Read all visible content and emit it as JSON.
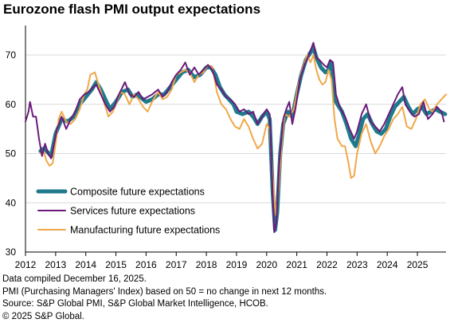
{
  "chart_data": {
    "type": "line",
    "title": "Eurozone flash PMI output expectations",
    "ylim": [
      30,
      76
    ],
    "y_ticks": [
      30,
      40,
      50,
      60,
      70
    ],
    "xlim": [
      2012.0,
      2025.95
    ],
    "x_tick_labels": [
      "2012",
      "2013",
      "2014",
      "2015",
      "2016",
      "2017",
      "2018",
      "2019",
      "2020",
      "2021",
      "2022",
      "2023",
      "2024",
      "2025"
    ],
    "grid": true,
    "legend_position": "bottom-left",
    "series": [
      {
        "name": "Composite future expectations",
        "color": "#1f7a8c",
        "points": [
          [
            2012.5,
            50.5
          ],
          [
            2012.6,
            51
          ],
          [
            2012.7,
            50.5
          ],
          [
            2012.85,
            49.5
          ],
          [
            2013.0,
            54
          ],
          [
            2013.2,
            57
          ],
          [
            2013.4,
            56.5
          ],
          [
            2013.6,
            57.5
          ],
          [
            2013.8,
            60
          ],
          [
            2014.0,
            61.5
          ],
          [
            2014.2,
            63
          ],
          [
            2014.35,
            64.5
          ],
          [
            2014.5,
            63
          ],
          [
            2014.65,
            61
          ],
          [
            2014.8,
            59
          ],
          [
            2015.0,
            60.5
          ],
          [
            2015.2,
            62.5
          ],
          [
            2015.4,
            63
          ],
          [
            2015.55,
            61.5
          ],
          [
            2015.7,
            62
          ],
          [
            2015.9,
            61
          ],
          [
            2016.0,
            60.5
          ],
          [
            2016.2,
            61
          ],
          [
            2016.4,
            62
          ],
          [
            2016.6,
            62
          ],
          [
            2016.8,
            63.5
          ],
          [
            2017.0,
            65
          ],
          [
            2017.2,
            66.5
          ],
          [
            2017.4,
            67
          ],
          [
            2017.6,
            65.5
          ],
          [
            2017.8,
            66
          ],
          [
            2018.0,
            67.5
          ],
          [
            2018.15,
            67.5
          ],
          [
            2018.3,
            66
          ],
          [
            2018.45,
            63.5
          ],
          [
            2018.6,
            62
          ],
          [
            2018.75,
            61
          ],
          [
            2018.9,
            60
          ],
          [
            2019.0,
            58.5
          ],
          [
            2019.2,
            58
          ],
          [
            2019.4,
            58.5
          ],
          [
            2019.55,
            57.5
          ],
          [
            2019.7,
            56
          ],
          [
            2019.85,
            57.5
          ],
          [
            2020.0,
            58.5
          ],
          [
            2020.1,
            57
          ],
          [
            2020.2,
            42
          ],
          [
            2020.28,
            34.5
          ],
          [
            2020.35,
            38
          ],
          [
            2020.45,
            50
          ],
          [
            2020.55,
            56
          ],
          [
            2020.7,
            58.5
          ],
          [
            2020.85,
            57.5
          ],
          [
            2021.0,
            62
          ],
          [
            2021.15,
            66
          ],
          [
            2021.3,
            69
          ],
          [
            2021.45,
            70.5
          ],
          [
            2021.55,
            71.5
          ],
          [
            2021.65,
            69.5
          ],
          [
            2021.8,
            67.5
          ],
          [
            2021.95,
            66.5
          ],
          [
            2022.05,
            67
          ],
          [
            2022.15,
            68.5
          ],
          [
            2022.25,
            61
          ],
          [
            2022.35,
            60
          ],
          [
            2022.5,
            58.5
          ],
          [
            2022.65,
            56
          ],
          [
            2022.8,
            53
          ],
          [
            2022.95,
            51.5
          ],
          [
            2023.05,
            53.5
          ],
          [
            2023.2,
            57
          ],
          [
            2023.35,
            58
          ],
          [
            2023.5,
            56
          ],
          [
            2023.65,
            54.5
          ],
          [
            2023.8,
            54
          ],
          [
            2023.95,
            55
          ],
          [
            2024.1,
            57.5
          ],
          [
            2024.25,
            59.5
          ],
          [
            2024.4,
            60.5
          ],
          [
            2024.55,
            61.5
          ],
          [
            2024.7,
            59.5
          ],
          [
            2024.85,
            58
          ],
          [
            2025.0,
            59
          ],
          [
            2025.15,
            59.5
          ],
          [
            2025.3,
            58
          ],
          [
            2025.45,
            58.5
          ],
          [
            2025.6,
            59
          ],
          [
            2025.75,
            58.5
          ],
          [
            2025.92,
            58
          ]
        ]
      },
      {
        "name": "Services future expectations",
        "color": "#6a1b7a",
        "points": [
          [
            2012.0,
            56.5
          ],
          [
            2012.1,
            58.5
          ],
          [
            2012.15,
            60.5
          ],
          [
            2012.25,
            57.5
          ],
          [
            2012.35,
            57.5
          ],
          [
            2012.45,
            53
          ],
          [
            2012.55,
            49.5
          ],
          [
            2012.65,
            52
          ],
          [
            2012.75,
            50
          ],
          [
            2012.85,
            49
          ],
          [
            2012.95,
            52
          ],
          [
            2013.05,
            55
          ],
          [
            2013.2,
            57.5
          ],
          [
            2013.35,
            55
          ],
          [
            2013.5,
            57
          ],
          [
            2013.65,
            58.5
          ],
          [
            2013.8,
            61
          ],
          [
            2013.95,
            62
          ],
          [
            2014.1,
            62.5
          ],
          [
            2014.25,
            63.5
          ],
          [
            2014.35,
            64
          ],
          [
            2014.5,
            62
          ],
          [
            2014.65,
            60
          ],
          [
            2014.8,
            58.5
          ],
          [
            2014.95,
            59.5
          ],
          [
            2015.1,
            62
          ],
          [
            2015.3,
            64.5
          ],
          [
            2015.45,
            62
          ],
          [
            2015.6,
            61.5
          ],
          [
            2015.75,
            62.5
          ],
          [
            2015.9,
            61
          ],
          [
            2016.05,
            61.5
          ],
          [
            2016.2,
            62
          ],
          [
            2016.4,
            63
          ],
          [
            2016.55,
            61.5
          ],
          [
            2016.7,
            62.5
          ],
          [
            2016.85,
            64.5
          ],
          [
            2017.0,
            66
          ],
          [
            2017.15,
            67
          ],
          [
            2017.3,
            68.5
          ],
          [
            2017.45,
            66
          ],
          [
            2017.6,
            67.5
          ],
          [
            2017.75,
            66
          ],
          [
            2017.9,
            67
          ],
          [
            2018.05,
            68
          ],
          [
            2018.2,
            67
          ],
          [
            2018.35,
            64
          ],
          [
            2018.5,
            63
          ],
          [
            2018.65,
            61.5
          ],
          [
            2018.8,
            61
          ],
          [
            2018.95,
            60
          ],
          [
            2019.1,
            58.5
          ],
          [
            2019.25,
            59
          ],
          [
            2019.4,
            58
          ],
          [
            2019.55,
            58.5
          ],
          [
            2019.7,
            56
          ],
          [
            2019.85,
            57.5
          ],
          [
            2020.0,
            59
          ],
          [
            2020.1,
            58
          ],
          [
            2020.18,
            45
          ],
          [
            2020.25,
            34
          ],
          [
            2020.32,
            36
          ],
          [
            2020.42,
            48
          ],
          [
            2020.55,
            57
          ],
          [
            2020.65,
            59
          ],
          [
            2020.75,
            60.5
          ],
          [
            2020.85,
            56
          ],
          [
            2020.95,
            59
          ],
          [
            2021.1,
            65
          ],
          [
            2021.25,
            68
          ],
          [
            2021.4,
            70
          ],
          [
            2021.55,
            72.5
          ],
          [
            2021.65,
            69.5
          ],
          [
            2021.75,
            69
          ],
          [
            2021.9,
            68
          ],
          [
            2022.0,
            67.5
          ],
          [
            2022.1,
            69
          ],
          [
            2022.2,
            68.5
          ],
          [
            2022.3,
            62
          ],
          [
            2022.4,
            60
          ],
          [
            2022.5,
            58.5
          ],
          [
            2022.6,
            57.5
          ],
          [
            2022.75,
            55
          ],
          [
            2022.9,
            53
          ],
          [
            2023.0,
            54.5
          ],
          [
            2023.15,
            58
          ],
          [
            2023.3,
            60
          ],
          [
            2023.45,
            56.5
          ],
          [
            2023.6,
            55.5
          ],
          [
            2023.75,
            54.5
          ],
          [
            2023.9,
            56
          ],
          [
            2024.05,
            58
          ],
          [
            2024.2,
            60
          ],
          [
            2024.35,
            62
          ],
          [
            2024.5,
            63.5
          ],
          [
            2024.6,
            60
          ],
          [
            2024.75,
            58.5
          ],
          [
            2024.9,
            57.5
          ],
          [
            2025.05,
            58
          ],
          [
            2025.2,
            60.5
          ],
          [
            2025.35,
            57
          ],
          [
            2025.5,
            58
          ],
          [
            2025.65,
            59.5
          ],
          [
            2025.8,
            58.5
          ],
          [
            2025.88,
            56.5
          ]
        ]
      },
      {
        "name": "Manufacturing future expectations",
        "color": "#f0a848",
        "points": [
          [
            2012.5,
            50
          ],
          [
            2012.6,
            50.5
          ],
          [
            2012.7,
            48.5
          ],
          [
            2012.8,
            47.5
          ],
          [
            2012.9,
            48
          ],
          [
            2013.0,
            52
          ],
          [
            2013.1,
            57
          ],
          [
            2013.2,
            58.5
          ],
          [
            2013.35,
            56.5
          ],
          [
            2013.5,
            56
          ],
          [
            2013.65,
            57
          ],
          [
            2013.8,
            59
          ],
          [
            2013.95,
            62
          ],
          [
            2014.05,
            63
          ],
          [
            2014.15,
            66
          ],
          [
            2014.3,
            66.5
          ],
          [
            2014.45,
            63.5
          ],
          [
            2014.6,
            60.5
          ],
          [
            2014.75,
            57.5
          ],
          [
            2014.9,
            58.5
          ],
          [
            2015.0,
            60
          ],
          [
            2015.15,
            62.5
          ],
          [
            2015.3,
            62
          ],
          [
            2015.45,
            60
          ],
          [
            2015.6,
            62
          ],
          [
            2015.75,
            61
          ],
          [
            2015.9,
            59.5
          ],
          [
            2016.05,
            58.5
          ],
          [
            2016.2,
            60.5
          ],
          [
            2016.4,
            62.5
          ],
          [
            2016.55,
            61
          ],
          [
            2016.7,
            61.5
          ],
          [
            2016.85,
            63
          ],
          [
            2017.0,
            66
          ],
          [
            2017.15,
            66.5
          ],
          [
            2017.3,
            67
          ],
          [
            2017.45,
            66.5
          ],
          [
            2017.6,
            64.5
          ],
          [
            2017.75,
            66
          ],
          [
            2017.9,
            66.5
          ],
          [
            2018.05,
            68
          ],
          [
            2018.2,
            67.5
          ],
          [
            2018.35,
            62.5
          ],
          [
            2018.5,
            60
          ],
          [
            2018.65,
            59
          ],
          [
            2018.8,
            57
          ],
          [
            2018.95,
            55.5
          ],
          [
            2019.1,
            55
          ],
          [
            2019.25,
            57
          ],
          [
            2019.4,
            55.5
          ],
          [
            2019.55,
            53
          ],
          [
            2019.7,
            51
          ],
          [
            2019.85,
            52
          ],
          [
            2020.0,
            56
          ],
          [
            2020.1,
            55
          ],
          [
            2020.2,
            45
          ],
          [
            2020.3,
            37.5
          ],
          [
            2020.4,
            43
          ],
          [
            2020.5,
            52
          ],
          [
            2020.6,
            58
          ],
          [
            2020.75,
            57.5
          ],
          [
            2020.9,
            59
          ],
          [
            2021.05,
            64
          ],
          [
            2021.2,
            67.5
          ],
          [
            2021.35,
            70
          ],
          [
            2021.45,
            68.5
          ],
          [
            2021.55,
            70
          ],
          [
            2021.65,
            67
          ],
          [
            2021.75,
            65
          ],
          [
            2021.85,
            64
          ],
          [
            2021.95,
            64.5
          ],
          [
            2022.05,
            67
          ],
          [
            2022.15,
            65
          ],
          [
            2022.25,
            57
          ],
          [
            2022.35,
            53
          ],
          [
            2022.5,
            51.5
          ],
          [
            2022.6,
            51.5
          ],
          [
            2022.7,
            48.5
          ],
          [
            2022.8,
            45
          ],
          [
            2022.9,
            45.5
          ],
          [
            2023.0,
            50
          ],
          [
            2023.15,
            54
          ],
          [
            2023.3,
            56
          ],
          [
            2023.45,
            52.5
          ],
          [
            2023.6,
            50
          ],
          [
            2023.75,
            51.5
          ],
          [
            2023.9,
            53.5
          ],
          [
            2024.05,
            55
          ],
          [
            2024.2,
            57
          ],
          [
            2024.35,
            58
          ],
          [
            2024.5,
            59.5
          ],
          [
            2024.65,
            55.5
          ],
          [
            2024.8,
            55
          ],
          [
            2024.95,
            57
          ],
          [
            2025.1,
            60
          ],
          [
            2025.25,
            61
          ],
          [
            2025.4,
            59
          ],
          [
            2025.5,
            58.5
          ],
          [
            2025.65,
            60
          ],
          [
            2025.8,
            61
          ],
          [
            2025.95,
            62
          ]
        ]
      }
    ]
  },
  "notes": [
    "Data compiled December 16, 2025.",
    "PMI (Purchasing Managers' Index) based on 50 = no change in next 12 months.",
    "Source: S&P Global PMI, S&P Global Market Intelligence, HCOB.",
    "© 2025 S&P Global."
  ]
}
